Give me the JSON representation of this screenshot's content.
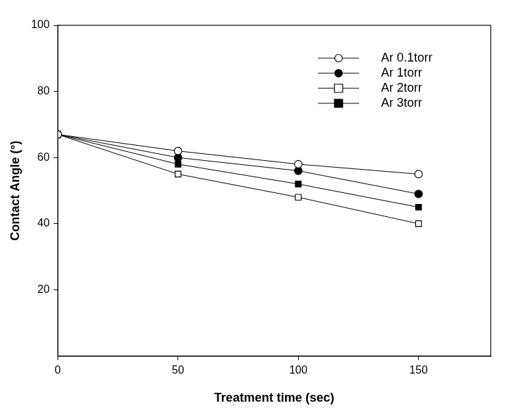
{
  "chart_data": {
    "type": "line",
    "x_label": "Treatment time (sec)",
    "y_label": "Contact Angle (°)",
    "x": [
      0,
      50,
      100,
      150
    ],
    "series": [
      {
        "name": "Ar 0.1torr",
        "color": "#000000",
        "marker": "open_circle",
        "values": [
          67,
          62,
          58,
          55
        ]
      },
      {
        "name": "Ar 1torr",
        "color": "#000000",
        "marker": "circle",
        "values": [
          67,
          60,
          56,
          49
        ]
      },
      {
        "name": "Ar 2torr",
        "color": "#000000",
        "marker": "open_square",
        "values": [
          67,
          55,
          48,
          40
        ]
      },
      {
        "name": "Ar 3torr",
        "color": "#000000",
        "marker": "square",
        "values": [
          67,
          58,
          52,
          45
        ]
      }
    ],
    "xlim": [
      0,
      180
    ],
    "xticks": [
      0,
      50,
      100,
      150
    ],
    "ylim": [
      0,
      100
    ],
    "yticks": [
      20,
      40,
      60,
      80,
      100
    ],
    "grid": false,
    "legend": "upper right"
  }
}
